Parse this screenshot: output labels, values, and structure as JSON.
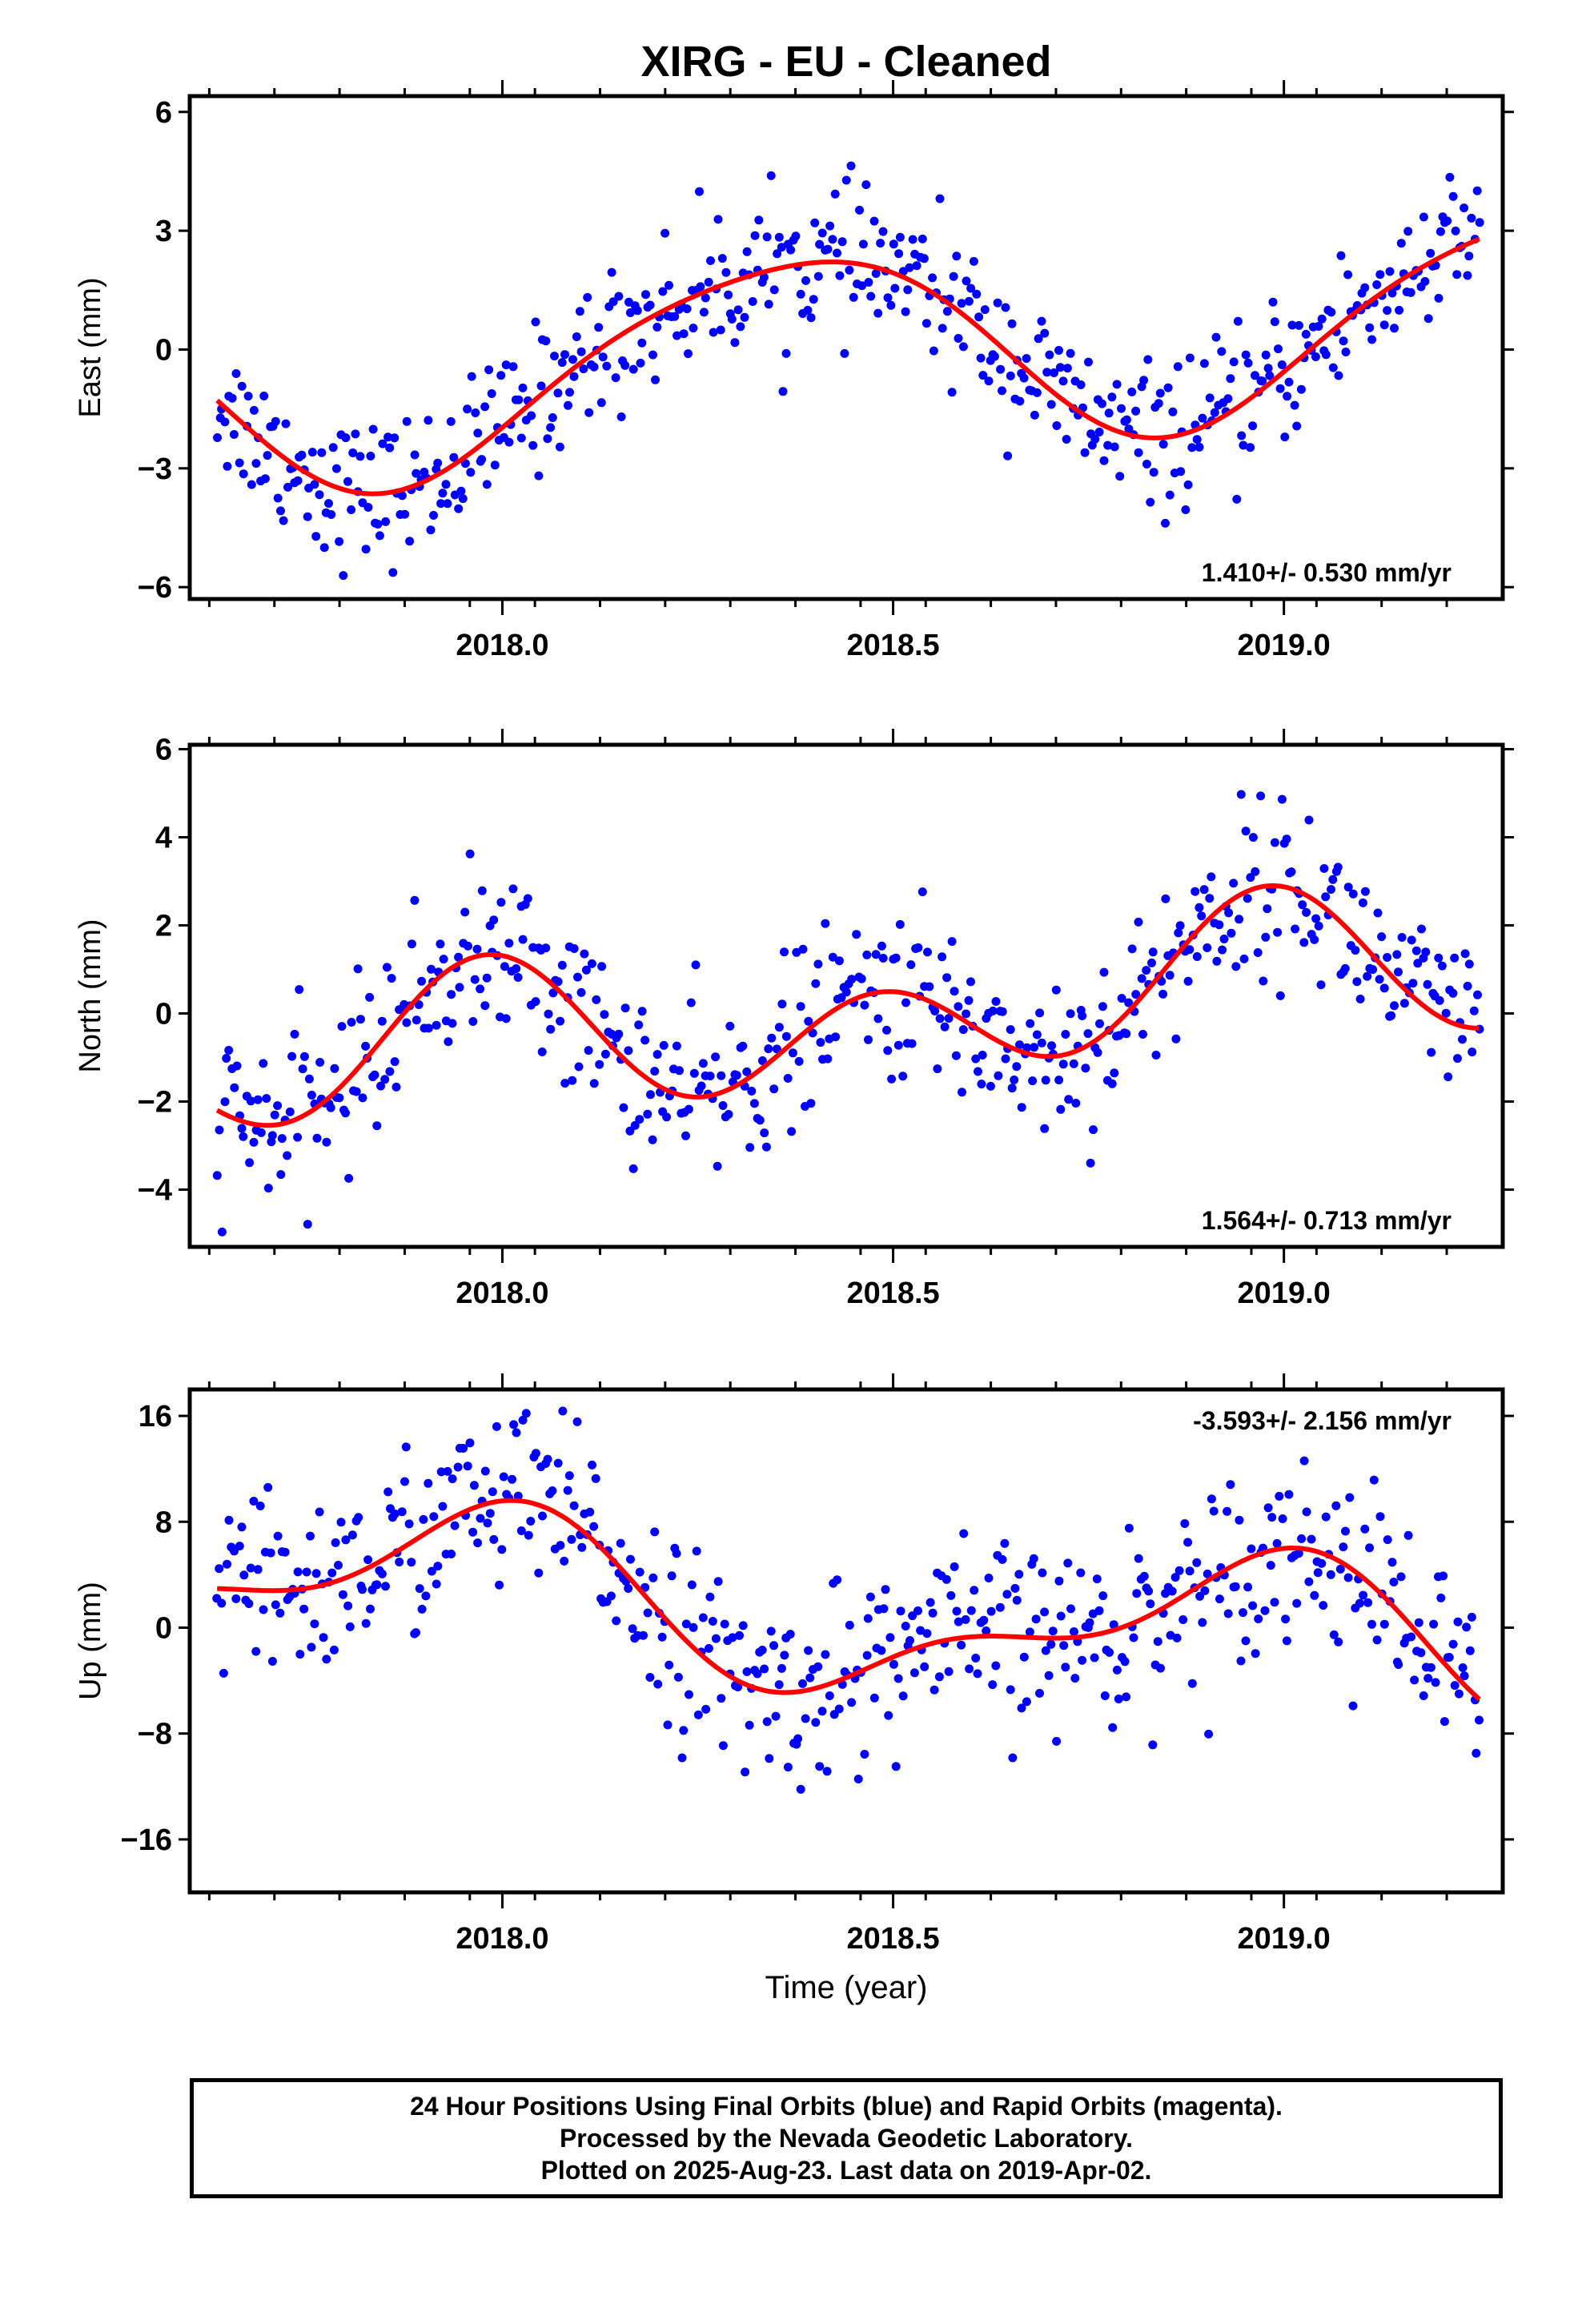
{
  "chart_data": [
    {
      "type": "scatter",
      "title": "XIRG  - EU - Cleaned",
      "xlabel": "",
      "ylabel": "East (mm)",
      "xlim": [
        2017.6,
        2019.28
      ],
      "ylim": [
        -6.3,
        6.4
      ],
      "xticks": [
        "2018.0",
        "2018.5",
        "2019.0"
      ],
      "yticks": [
        "6",
        "3",
        "0",
        "−3",
        "−6"
      ],
      "ytick_values": [
        6,
        3,
        0,
        -3,
        -6
      ],
      "rate_label": "1.410+/- 0.530 mm/yr",
      "model": {
        "mean": 0.0,
        "trend": 1.41,
        "t0": 2018.44,
        "a1": 1.9,
        "b1": -1.6,
        "a2": 0.25,
        "b2": 0.25
      },
      "noise_sd": 0.9,
      "series": [
        {
          "label": "Final Orbits",
          "color": "#0000ff"
        },
        {
          "label": "fit",
          "color": "#ff0000"
        }
      ]
    },
    {
      "type": "scatter",
      "title": "",
      "xlabel": "",
      "ylabel": "North (mm)",
      "xlim": [
        2017.6,
        2019.28
      ],
      "ylim": [
        -5.3,
        6.1
      ],
      "xticks": [
        "2018.0",
        "2018.5",
        "2019.0"
      ],
      "yticks": [
        "6",
        "4",
        "2",
        "0",
        "−2",
        "−4"
      ],
      "ytick_values": [
        6,
        4,
        2,
        0,
        -2,
        -4
      ],
      "rate_label": "1.564+/- 0.713 mm/yr",
      "model": {
        "mean": -0.1,
        "trend": 1.564,
        "t0": 2018.44,
        "a1": -0.2,
        "b1": 0.8,
        "a2": -0.3,
        "b2": 1.3
      },
      "noise_sd": 0.95,
      "series": [
        {
          "label": "Final Orbits",
          "color": "#0000ff"
        },
        {
          "label": "fit",
          "color": "#ff0000"
        }
      ]
    },
    {
      "type": "scatter",
      "title": "",
      "xlabel": "Time (year)",
      "ylabel": "Up (mm)",
      "xlim": [
        2017.6,
        2019.28
      ],
      "ylim": [
        -20,
        18
      ],
      "xticks": [
        "2018.0",
        "2018.5",
        "2019.0"
      ],
      "yticks": [
        "16",
        "8",
        "0",
        "−8",
        "−16"
      ],
      "ytick_values": [
        16,
        8,
        0,
        -8,
        -16
      ],
      "rate_label": "-3.593+/- 2.156 mm/yr",
      "model": {
        "mean": 1.0,
        "trend": -3.593,
        "t0": 2018.44,
        "a1": -1.5,
        "b1": 5.0,
        "a2": 1.5,
        "b2": 2.0
      },
      "noise_sd": 3.5,
      "series": [
        {
          "label": "Final Orbits",
          "color": "#0000ff"
        },
        {
          "label": "fit",
          "color": "#ff0000"
        }
      ]
    }
  ],
  "caption": {
    "line1": "24 Hour Positions Using Final Orbits (blue) and Rapid Orbits (magenta).",
    "line2": "Processed by the Nevada Geodetic Laboratory.",
    "line3": "Plotted on 2025-Aug-23. Last data on 2019-Apr-02."
  },
  "colors": {
    "points": "#0000ff",
    "fit": "#ff0000",
    "frame": "#000000"
  }
}
